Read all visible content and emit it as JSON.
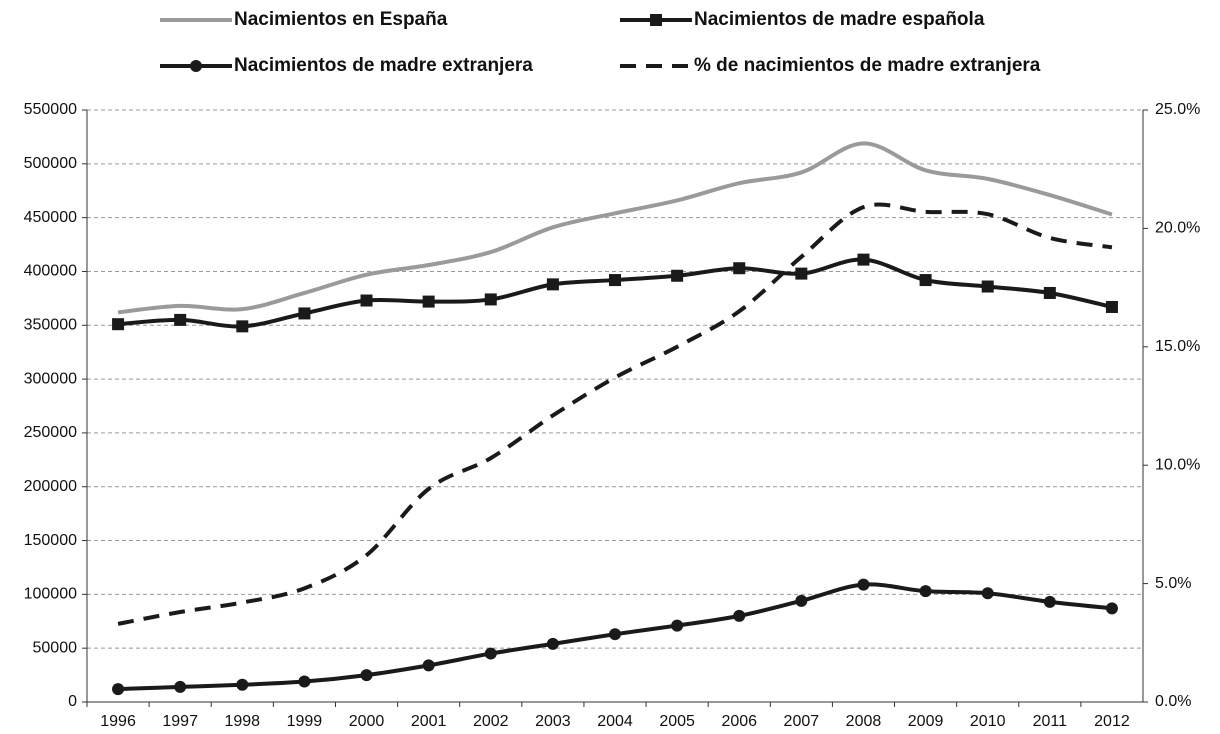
{
  "chart_data": {
    "type": "line",
    "categories": [
      "1996",
      "1997",
      "1998",
      "1999",
      "2000",
      "2001",
      "2002",
      "2003",
      "2004",
      "2005",
      "2006",
      "2007",
      "2008",
      "2009",
      "2010",
      "2011",
      "2012"
    ],
    "series": [
      {
        "name": "Nacimientos en España",
        "color": "#9a9a9a",
        "marker": "none",
        "dash": false,
        "values": [
          362000,
          368000,
          365000,
          380000,
          397000,
          406000,
          418000,
          441000,
          454000,
          466000,
          482000,
          492000,
          519000,
          494000,
          486000,
          471000,
          453000
        ]
      },
      {
        "name": "Nacimientos de madre española",
        "color": "#1a1a1a",
        "marker": "square",
        "dash": false,
        "values": [
          351000,
          355000,
          349000,
          361000,
          373000,
          372000,
          374000,
          388000,
          392000,
          396000,
          403000,
          398000,
          411000,
          392000,
          386000,
          380000,
          367000
        ]
      },
      {
        "name": "Nacimientos de madre extranjera",
        "color": "#1a1a1a",
        "marker": "circle",
        "dash": false,
        "values": [
          12000,
          14000,
          16000,
          19000,
          25000,
          34000,
          45000,
          54000,
          63000,
          71000,
          80000,
          94000,
          109000,
          103000,
          101000,
          93000,
          87000
        ]
      },
      {
        "name": "% de nacimientos de madre extranjera",
        "color": "#1a1a1a",
        "marker": "none",
        "dash": true,
        "axis": "y2",
        "values": [
          3.3,
          3.8,
          4.2,
          4.8,
          6.2,
          9.0,
          10.3,
          12.1,
          13.7,
          15.0,
          16.5,
          18.8,
          20.9,
          20.7,
          20.6,
          19.6,
          19.2
        ]
      }
    ],
    "ylim": [
      0,
      550000
    ],
    "yticks": [
      0,
      50000,
      100000,
      150000,
      200000,
      250000,
      300000,
      350000,
      400000,
      450000,
      500000,
      550000
    ],
    "y2lim": [
      0,
      25
    ],
    "y2ticks": [
      {
        "value": 0,
        "label": "0.0%"
      },
      {
        "value": 5,
        "label": "5.0%"
      },
      {
        "value": 10,
        "label": "10.0%"
      },
      {
        "value": 15,
        "label": "15.0%"
      },
      {
        "value": 20,
        "label": "20.0%"
      },
      {
        "value": 25,
        "label": "25.0%"
      }
    ],
    "grid": true
  }
}
